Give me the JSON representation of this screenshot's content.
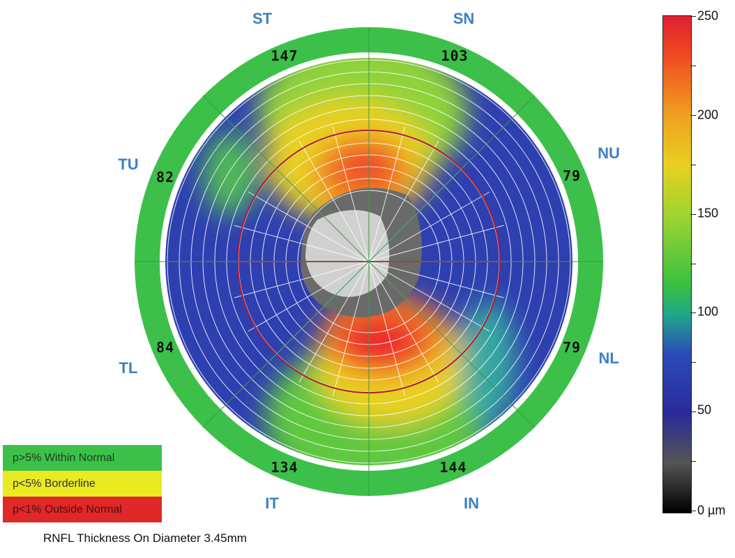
{
  "sectors": {
    "st": "ST",
    "sn": "SN",
    "nu": "NU",
    "nl": "NL",
    "in": "IN",
    "it": "IT",
    "tl": "TL",
    "tu": "TU"
  },
  "ring_values": {
    "st": "147",
    "sn": "103",
    "nu": "79",
    "nl": "79",
    "in": "144",
    "it": "134",
    "tl": "84",
    "tu": "82"
  },
  "color_scale": {
    "labels": [
      "250",
      "200",
      "150",
      "100",
      "50",
      "0 µm"
    ]
  },
  "legend": {
    "normal": "p>5% Within Normal",
    "borderline": "p<5% Borderline",
    "outside": "p<1% Outside Normal"
  },
  "caption": "RNFL Thickness On Diameter 3.45mm",
  "colors": {
    "sector_label": "#3d7fc6",
    "within_normal": "#3cc04a",
    "borderline": "#eaea20",
    "outside_normal": "#e02828",
    "thin_blue": "#2e3fb0",
    "thick_red": "#ee2a2a"
  }
}
